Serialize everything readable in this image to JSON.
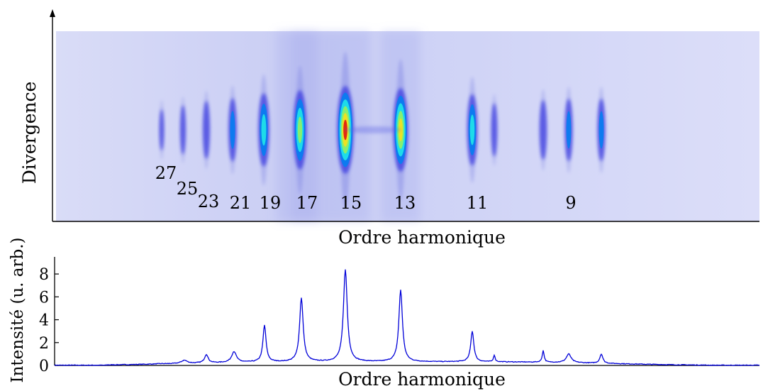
{
  "chart_data": [
    {
      "type": "heatmap",
      "xlabel": "Ordre harmonique",
      "ylabel": "Divergence",
      "colormap": "jet",
      "background_color": "#d7daf8",
      "annotations": [
        "27",
        "25",
        "23",
        "21",
        "19",
        "17",
        "15",
        "13",
        "11",
        "9"
      ],
      "spots": [
        {
          "order": "27",
          "intensity": 0.03
        },
        {
          "order": "25",
          "intensity": 0.1
        },
        {
          "order": "23",
          "intensity": 0.22
        },
        {
          "order": "21",
          "intensity": 0.32
        },
        {
          "order": "19",
          "intensity": 0.55
        },
        {
          "order": "17",
          "intensity": 0.72
        },
        {
          "order": "15",
          "intensity": 1.0
        },
        {
          "order": "13",
          "intensity": 0.85
        },
        {
          "order": "11",
          "intensity": 0.5
        },
        {
          "order": "9",
          "intensity": 0.3
        }
      ]
    },
    {
      "type": "line",
      "xlabel": "Ordre harmonique",
      "ylabel": "Intensité (u. arb.)",
      "ylim": [
        0,
        9
      ],
      "yticks": [
        0,
        2,
        4,
        6,
        8
      ],
      "line_color": "#0000d8",
      "baseline_level": 0.3,
      "peaks": [
        {
          "label": "27",
          "value": 0.15
        },
        {
          "label": "25",
          "value": 0.45
        },
        {
          "label": "23",
          "value": 0.95
        },
        {
          "label": "21",
          "value": 1.2
        },
        {
          "label": "19",
          "value": 3.5
        },
        {
          "label": "17",
          "value": 5.9
        },
        {
          "label": "15",
          "value": 8.4
        },
        {
          "label": "13",
          "value": 6.6
        },
        {
          "label": "11",
          "value": 3.0
        },
        {
          "label": "",
          "value": 0.9
        },
        {
          "label": "",
          "value": 1.3
        },
        {
          "label": "9",
          "value": 1.0
        },
        {
          "label": "",
          "value": 1.0
        }
      ]
    }
  ]
}
